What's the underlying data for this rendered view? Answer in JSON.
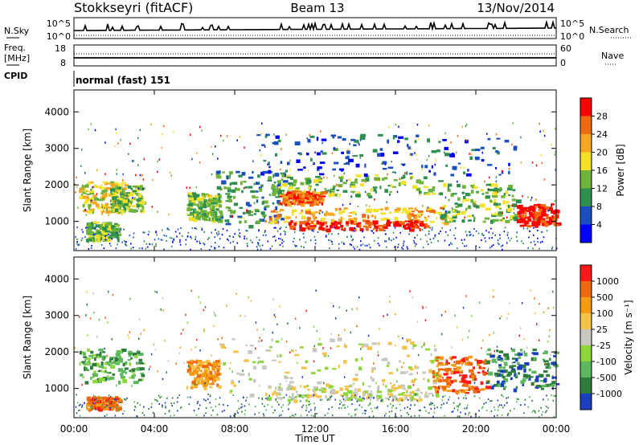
{
  "header": {
    "station": "Stokkseyri (fitACF)",
    "beam": "Beam 13",
    "date": "13/Nov/2014",
    "nsky_label": "N.Sky",
    "nsky_ticks": [
      "10^5",
      "10^0"
    ],
    "nsearch_label": "N.Search",
    "nsearch_ticks": [
      "10^5",
      "10^0"
    ],
    "freq_label_1": "Freq.",
    "freq_label_2": "[MHz]",
    "freq_ticks": [
      "18",
      "8"
    ],
    "nave_label": "Nave",
    "nave_ticks": [
      "60",
      "0"
    ],
    "cpid_label": "CPID",
    "cpid_value": "normal (fast) 151"
  },
  "chart_data": [
    {
      "type": "heatmap",
      "name": "power",
      "ylabel": "Slant Range [km]",
      "yticks": [
        "1000",
        "2000",
        "3000",
        "4000"
      ],
      "ylim": [
        200,
        4600
      ],
      "colorbar_label": "Power [dB]",
      "colorbar_ticks": [
        "4",
        "8",
        "12",
        "16",
        "20",
        "24",
        "28"
      ],
      "colorbar_colors": [
        "#0000ff",
        "#1a4fc0",
        "#2f8f4f",
        "#6fb43a",
        "#f3e12a",
        "#f5a623",
        "#ee6a10",
        "#ff0000"
      ],
      "regions": [
        {
          "t0": 0.2,
          "t1": 2.6,
          "r0": 1250,
          "r1": 2100,
          "level": 4
        },
        {
          "t0": 1.8,
          "t1": 3.4,
          "r0": 1300,
          "r1": 2000,
          "level": 3
        },
        {
          "t0": 0.6,
          "t1": 2.2,
          "r0": 500,
          "r1": 1000,
          "level": 3
        },
        {
          "t0": 5.6,
          "t1": 7.2,
          "r0": 1050,
          "r1": 1800,
          "level": 3
        },
        {
          "t0": 7.0,
          "t1": 10.5,
          "r0": 900,
          "r1": 2400,
          "level": 2
        },
        {
          "t0": 9.8,
          "t1": 18.2,
          "r0": 1700,
          "r1": 2300,
          "level": 3
        },
        {
          "t0": 9.5,
          "t1": 18.5,
          "r0": 950,
          "r1": 1400,
          "level": 5
        },
        {
          "t0": 10.5,
          "t1": 17.5,
          "r0": 800,
          "r1": 1050,
          "level": 7
        },
        {
          "t0": 10.2,
          "t1": 12.4,
          "r0": 1500,
          "r1": 1850,
          "level": 6
        },
        {
          "t0": 18.2,
          "t1": 22.0,
          "r0": 1000,
          "r1": 2100,
          "level": 3
        },
        {
          "t0": 22.0,
          "t1": 24.0,
          "r0": 900,
          "r1": 1500,
          "level": 7
        },
        {
          "t0": 9.0,
          "t1": 22.0,
          "r0": 2300,
          "r1": 3400,
          "level": 1
        }
      ]
    },
    {
      "type": "heatmap",
      "name": "velocity",
      "ylabel": "Slant Range [km]",
      "yticks": [
        "1000",
        "2000",
        "3000",
        "4000"
      ],
      "ylim": [
        200,
        4600
      ],
      "colorbar_label": "Velocity [m s⁻¹]",
      "colorbar_ticks": [
        "1000",
        "500",
        "100",
        "25",
        "-25",
        "-100",
        "-500",
        "-1000"
      ],
      "colorbar_colors": [
        "#1a3fbf",
        "#2e7d3c",
        "#5cb85c",
        "#8cd63a",
        "#c8c8c0",
        "#f5c24a",
        "#f39c12",
        "#ee6a10",
        "#ff1a1a"
      ],
      "regions": [
        {
          "t0": 0.2,
          "t1": 3.4,
          "r0": 1200,
          "r1": 2100,
          "level": 2
        },
        {
          "t0": 0.6,
          "t1": 2.2,
          "r0": 450,
          "r1": 800,
          "level": 7
        },
        {
          "t0": 5.6,
          "t1": 7.2,
          "r0": 1050,
          "r1": 1800,
          "level": 6
        },
        {
          "t0": 7.2,
          "t1": 18.2,
          "r0": 800,
          "r1": 2400,
          "level": 4
        },
        {
          "t0": 9.5,
          "t1": 17.5,
          "r0": 700,
          "r1": 1100,
          "level": 4
        },
        {
          "t0": 17.8,
          "t1": 20.5,
          "r0": 900,
          "r1": 1900,
          "level": 7
        },
        {
          "t0": 20.5,
          "t1": 24.0,
          "r0": 1000,
          "r1": 2100,
          "level": 1
        }
      ]
    }
  ],
  "xaxis": {
    "ticks": [
      "00:00",
      "04:00",
      "08:00",
      "12:00",
      "16:00",
      "20:00",
      "00:00"
    ],
    "label": "Time UT"
  }
}
